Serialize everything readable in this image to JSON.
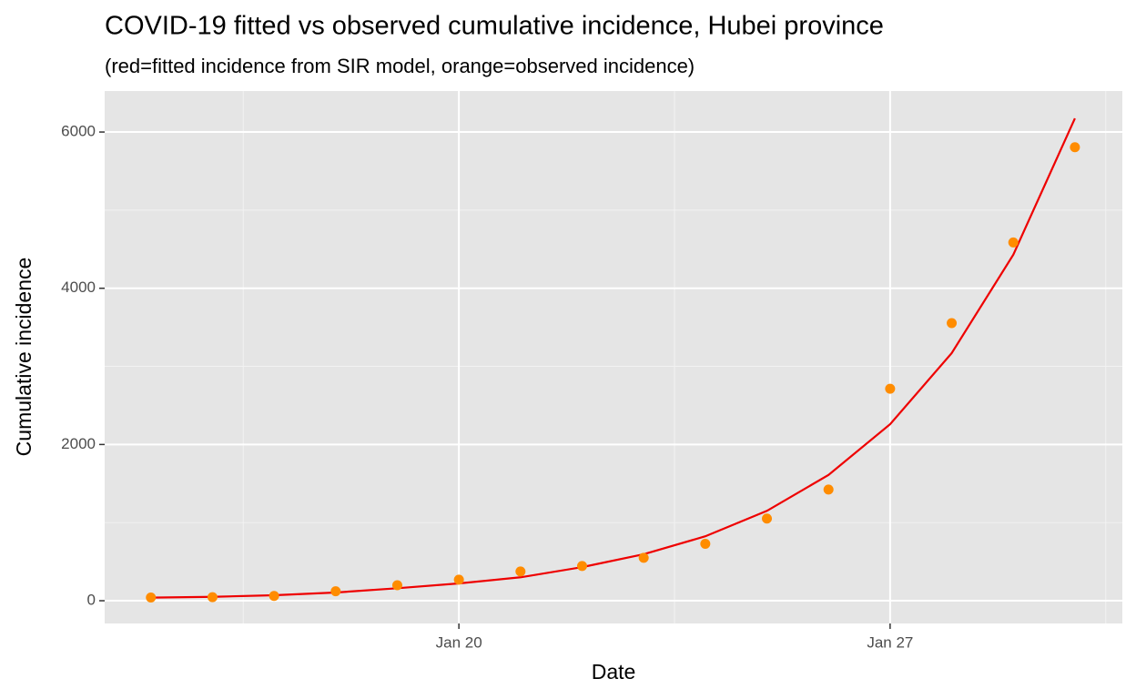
{
  "chart_data": {
    "type": "line",
    "title": "COVID-19 fitted vs observed cumulative incidence, Hubei province",
    "subtitle": "(red=fitted incidence from SIR model, orange=observed incidence)",
    "x_label": "Date",
    "y_label": "Cumulative incidence",
    "x": [
      15,
      16,
      17,
      18,
      19,
      20,
      21,
      22,
      23,
      24,
      25,
      26,
      27,
      28,
      29,
      30
    ],
    "xlim": [
      14.25,
      30.77
    ],
    "xticks": [
      {
        "value": 20,
        "label": "Jan 20"
      },
      {
        "value": 27,
        "label": "Jan 27"
      }
    ],
    "xminor": [
      16.5,
      23.5,
      30.5
    ],
    "ylim": [
      -291,
      6525
    ],
    "yticks": [
      0,
      2000,
      4000,
      6000
    ],
    "yminor": [
      1000,
      3000,
      5000
    ],
    "grid": true,
    "series": [
      {
        "style": "line",
        "color": "#ee0000",
        "values": [
          40,
          50,
          70,
          105,
          160,
          222,
          300,
          430,
          595,
          825,
          1150,
          1610,
          2260,
          3170,
          4430,
          6175
        ]
      },
      {
        "style": "point",
        "color": "#ff8c00",
        "values": [
          41,
          45,
          62,
          121,
          198,
          270,
          375,
          444,
          549,
          729,
          1052,
          1423,
          2714,
          3554,
          4586,
          5806
        ]
      }
    ]
  }
}
